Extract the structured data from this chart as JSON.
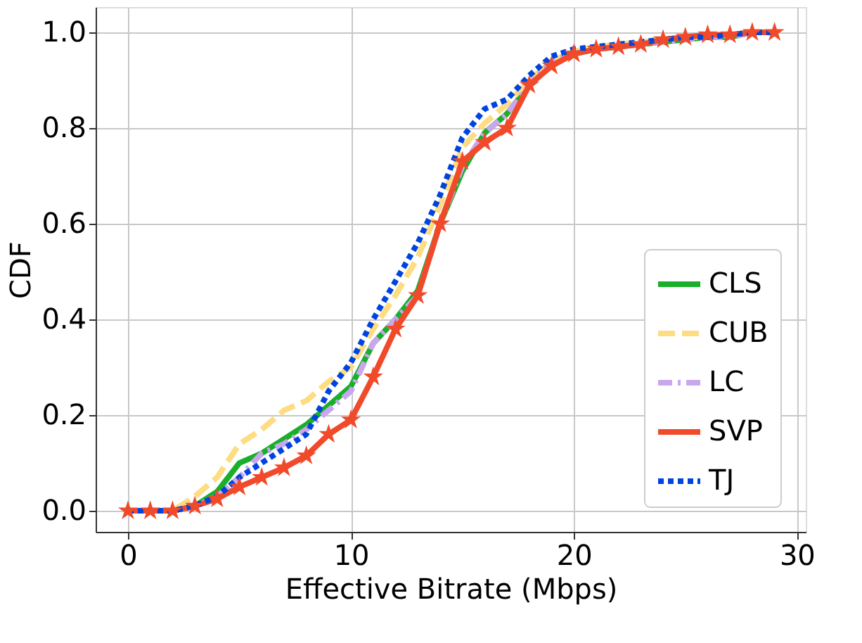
{
  "chart_data": {
    "type": "line",
    "xlabel": "Effective Bitrate (Mbps)",
    "ylabel": "CDF",
    "x": [
      0,
      1,
      2,
      3,
      4,
      5,
      6,
      7,
      8,
      9,
      10,
      11,
      12,
      13,
      14,
      15,
      16,
      17,
      18,
      19,
      20,
      21,
      22,
      23,
      24,
      25,
      26,
      27,
      28,
      29
    ],
    "series": [
      {
        "name": "CLS",
        "color": "#1aaf2a",
        "line_style": "solid",
        "marker": "none",
        "values": [
          null,
          null,
          0,
          0.01,
          0.04,
          0.1,
          0.12,
          0.15,
          0.18,
          0.22,
          0.26,
          0.35,
          0.4,
          0.46,
          0.6,
          0.71,
          0.79,
          0.83,
          0.89,
          0.94,
          0.955,
          0.965,
          0.97,
          0.975,
          0.98,
          0.985,
          0.99,
          0.99,
          1.0,
          1.0
        ]
      },
      {
        "name": "CUB",
        "color": "#fddc82",
        "line_style": "dashed",
        "marker": "none",
        "values": [
          0,
          0,
          0,
          0.03,
          0.07,
          0.14,
          0.17,
          0.21,
          0.23,
          0.27,
          0.3,
          0.38,
          0.45,
          0.53,
          0.64,
          0.76,
          0.81,
          0.85,
          0.9,
          0.94,
          0.96,
          0.97,
          0.975,
          0.98,
          0.985,
          0.99,
          0.99,
          0.995,
          1.0,
          1.0
        ]
      },
      {
        "name": "LC",
        "color": "#c9a7ef",
        "line_style": "dashdot",
        "marker": "none",
        "values": [
          0,
          0,
          0,
          0.01,
          0.03,
          0.07,
          0.12,
          0.14,
          0.17,
          0.21,
          0.25,
          0.35,
          0.4,
          0.45,
          0.6,
          0.72,
          0.79,
          0.83,
          0.89,
          0.94,
          0.955,
          0.965,
          0.97,
          0.975,
          0.98,
          0.985,
          0.99,
          0.99,
          1.0,
          1.0
        ]
      },
      {
        "name": "SVP",
        "color": "#f04a2b",
        "line_style": "solid",
        "marker": "star",
        "values": [
          0,
          0,
          0,
          0.01,
          0.025,
          0.05,
          0.07,
          0.09,
          0.115,
          0.16,
          0.19,
          0.28,
          0.38,
          0.45,
          0.6,
          0.73,
          0.77,
          0.8,
          0.89,
          0.93,
          0.955,
          0.965,
          0.97,
          0.975,
          0.985,
          0.99,
          0.995,
          0.995,
          1.0,
          1.0
        ]
      },
      {
        "name": "TJ",
        "color": "#0044e0",
        "line_style": "dotted",
        "marker": "none",
        "values": [
          0,
          0,
          0,
          0.01,
          0.03,
          0.07,
          0.1,
          0.13,
          0.16,
          0.25,
          0.31,
          0.4,
          0.48,
          0.56,
          0.66,
          0.78,
          0.84,
          0.86,
          0.91,
          0.95,
          0.965,
          0.97,
          0.975,
          0.98,
          0.985,
          0.99,
          0.99,
          0.995,
          1.0,
          1.0
        ]
      }
    ],
    "xlim": [
      -1.45,
      30.4
    ],
    "xticks": [
      0,
      10,
      20,
      30
    ],
    "ylim": [
      -0.044,
      1.053
    ],
    "yticks": [
      {
        "value": 0,
        "label": "0.0"
      },
      {
        "value": 0.2,
        "label": "0.2"
      },
      {
        "value": 0.4,
        "label": "0.4"
      },
      {
        "value": 0.6,
        "label": "0.6"
      },
      {
        "value": 0.8,
        "label": "0.8"
      },
      {
        "value": 1.0,
        "label": "1.0"
      }
    ],
    "grid": true,
    "legend": "bottom right"
  }
}
